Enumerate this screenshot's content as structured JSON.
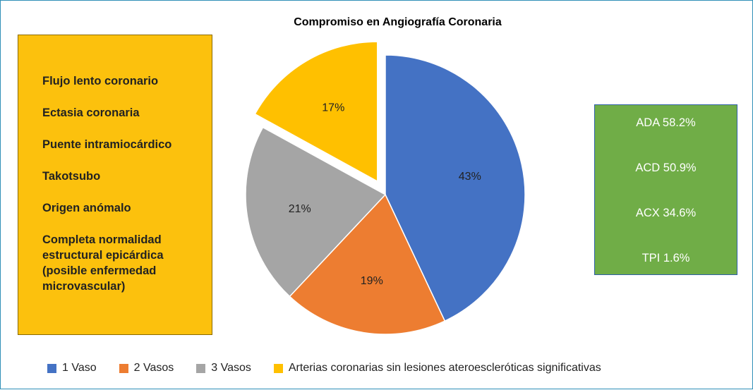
{
  "chart_data": {
    "type": "pie",
    "title": "Compromiso en Angiografía Coronaria",
    "slices": [
      {
        "name": "1 Vaso",
        "value": 43,
        "label": "43%",
        "color": "#4472c4"
      },
      {
        "name": "2 Vasos",
        "value": 19,
        "label": "19%",
        "color": "#ed7d31"
      },
      {
        "name": "3 Vasos",
        "value": 21,
        "label": "21%",
        "color": "#a5a5a5"
      },
      {
        "name": "Arterias coronarias sin lesiones ateroescleróticas significativas",
        "value": 17,
        "label": "17%",
        "color": "#ffc000",
        "exploded": true
      }
    ],
    "legend_position": "bottom"
  },
  "left_box": {
    "items": [
      "Flujo lento coronario",
      "Ectasia coronaria",
      "Puente intramiocárdico",
      "Takotsubo",
      "Origen anómalo",
      "Completa normalidad estructural epicárdica (posible enfermedad microvascular)"
    ],
    "color": "#fcc10d"
  },
  "right_box": {
    "stats": [
      "ADA 58.2%",
      "ACD 50.9%",
      "ACX 34.6%",
      "TPI 1.6%"
    ],
    "color": "#70ad47"
  }
}
